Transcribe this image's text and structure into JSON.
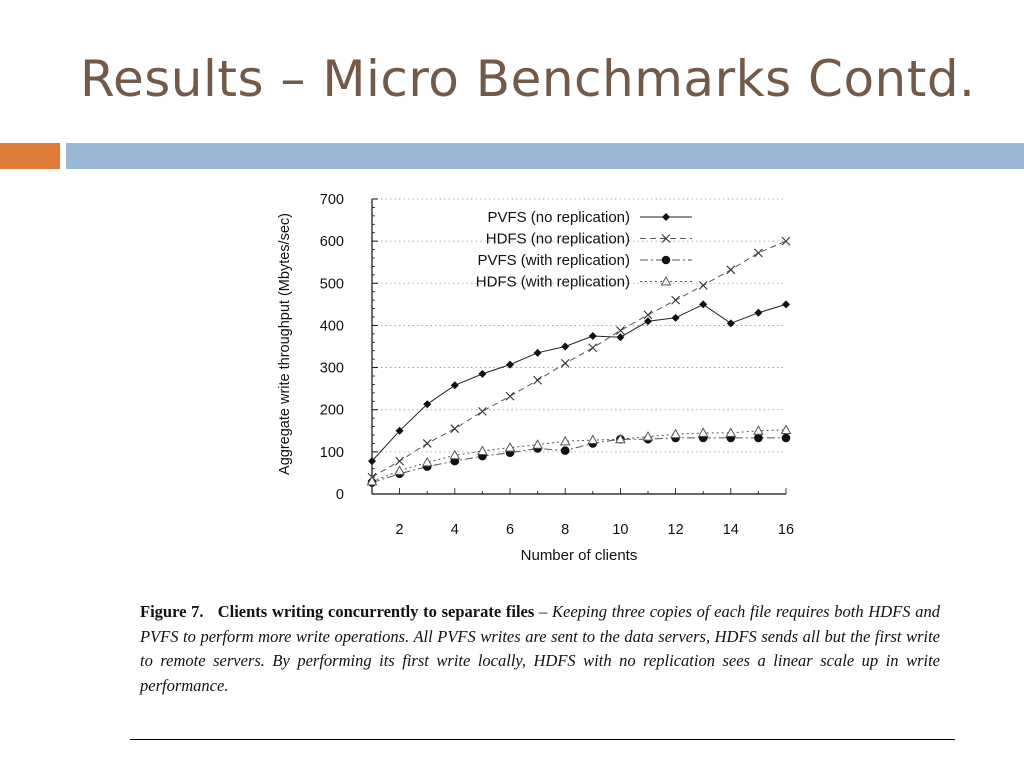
{
  "slide": {
    "title": "Results – Micro Benchmarks Contd.",
    "colors": {
      "title": "#735a48",
      "accent_orange": "#e07b39",
      "accent_blue": "#98b8d6"
    }
  },
  "chart_data": {
    "type": "line",
    "xlabel": "Number of clients",
    "ylabel": "Aggregate write throughput (Mbytes/sec)",
    "xlim": [
      1,
      16
    ],
    "ylim": [
      0,
      700
    ],
    "x_ticks": [
      2,
      4,
      6,
      8,
      10,
      12,
      14,
      16
    ],
    "y_ticks": [
      0,
      100,
      200,
      300,
      400,
      500,
      600,
      700
    ],
    "grid": "horizontal dotted",
    "legend_position": "top-right",
    "x": [
      1,
      2,
      3,
      4,
      5,
      6,
      7,
      8,
      9,
      10,
      11,
      12,
      13,
      14,
      15,
      16
    ],
    "series": [
      {
        "name": "PVFS (no replication)",
        "marker": "diamond",
        "line": "solid",
        "values": [
          78,
          150,
          213,
          258,
          285,
          307,
          335,
          350,
          375,
          372,
          410,
          418,
          450,
          405,
          430,
          450
        ]
      },
      {
        "name": "HDFS (no replication)",
        "marker": "x",
        "line": "dashed",
        "values": [
          40,
          78,
          120,
          155,
          196,
          232,
          270,
          310,
          347,
          388,
          425,
          460,
          495,
          532,
          572,
          600
        ]
      },
      {
        "name": "PVFS (with replication)",
        "marker": "circle",
        "line": "dash-dot",
        "values": [
          27,
          48,
          65,
          78,
          90,
          98,
          108,
          103,
          120,
          130,
          130,
          133,
          133,
          133,
          133,
          133
        ]
      },
      {
        "name": "HDFS (with replication)",
        "marker": "triangle",
        "line": "dotted",
        "values": [
          30,
          55,
          75,
          92,
          102,
          110,
          117,
          125,
          128,
          130,
          136,
          142,
          145,
          145,
          150,
          152
        ]
      }
    ]
  },
  "caption": {
    "figure_label": "Figure 7.",
    "figure_title": "Clients writing concurrently to separate files",
    "separator": " – ",
    "description": "Keeping three copies of each file requires both HDFS and PVFS to perform more write operations. All PVFS writes are sent to the data servers, HDFS sends all but the first write to remote servers. By performing its first write locally, HDFS with no replication sees a linear scale up in write performance."
  }
}
